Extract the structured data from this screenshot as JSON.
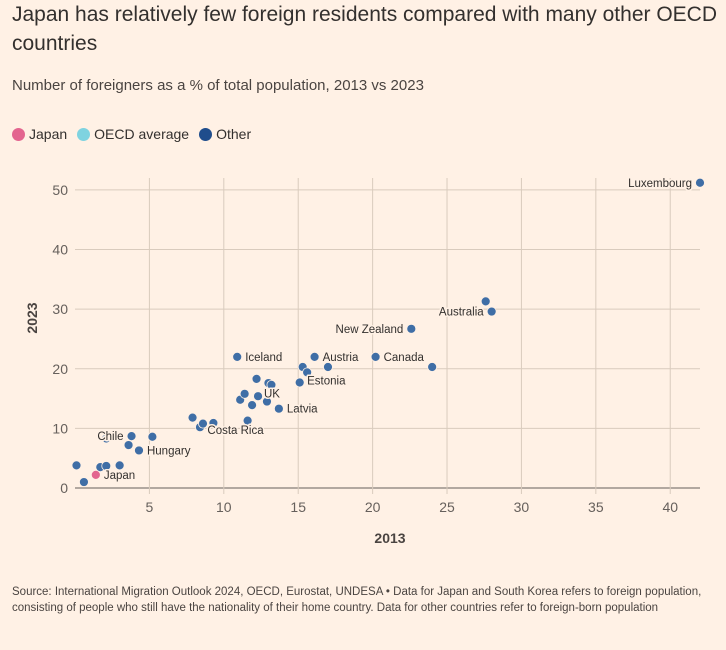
{
  "title": "Japan has relatively few foreign residents compared with many other OECD countries",
  "subtitle": "Number of foreigners as a % of total population, 2013 vs 2023",
  "source": "Source: International Migration Outlook 2024, OECD, Eurostat, UNDESA • Data for Japan and South Korea refers to foreign population, consisting of people who still have the nationality of their home country. Data for other countries refer to foreign-born population",
  "legend": [
    {
      "label": "Japan",
      "color": "#e3658f"
    },
    {
      "label": "OECD average",
      "color": "#7fd3e0"
    },
    {
      "label": "Other",
      "color": "#1f4d8c"
    }
  ],
  "chart_data": {
    "type": "scatter",
    "xlabel": "2013",
    "ylabel": "2023",
    "xlim": [
      0,
      42
    ],
    "ylim": [
      0,
      52
    ],
    "xticks": [
      5,
      10,
      15,
      20,
      25,
      30,
      35,
      40
    ],
    "yticks": [
      0,
      10,
      20,
      30,
      40,
      50
    ],
    "grid": true,
    "points": [
      {
        "x": 0.1,
        "y": 3.8,
        "group": "Other"
      },
      {
        "x": 0.6,
        "y": 1.0,
        "group": "Other"
      },
      {
        "x": 1.4,
        "y": 2.2,
        "group": "Japan",
        "label": "Japan",
        "labelSide": "right"
      },
      {
        "x": 1.7,
        "y": 3.5,
        "group": "Other"
      },
      {
        "x": 2.1,
        "y": 3.7,
        "group": "Other"
      },
      {
        "x": 2.1,
        "y": 8.3,
        "group": "Other"
      },
      {
        "x": 3.0,
        "y": 3.8,
        "group": "Other"
      },
      {
        "x": 3.6,
        "y": 7.2,
        "group": "Other"
      },
      {
        "x": 3.8,
        "y": 8.7,
        "group": "Other",
        "label": "Chile",
        "labelSide": "left"
      },
      {
        "x": 4.3,
        "y": 6.3,
        "group": "Other",
        "label": "Hungary",
        "labelSide": "right"
      },
      {
        "x": 5.2,
        "y": 8.6,
        "group": "Other"
      },
      {
        "x": 7.9,
        "y": 11.8,
        "group": "Other"
      },
      {
        "x": 8.4,
        "y": 10.2,
        "group": "Other"
      },
      {
        "x": 8.6,
        "y": 10.8,
        "group": "Other"
      },
      {
        "x": 9.3,
        "y": 10.9,
        "group": "Other",
        "label": "Costa Rica",
        "labelSide": "below"
      },
      {
        "x": 10.9,
        "y": 22.0,
        "group": "Other",
        "label": "Iceland",
        "labelSide": "right"
      },
      {
        "x": 11.1,
        "y": 14.8,
        "group": "Other"
      },
      {
        "x": 11.4,
        "y": 15.8,
        "group": "Other"
      },
      {
        "x": 11.6,
        "y": 11.3,
        "group": "Other"
      },
      {
        "x": 11.9,
        "y": 13.9,
        "group": "Other"
      },
      {
        "x": 12.2,
        "y": 18.3,
        "group": "Other"
      },
      {
        "x": 12.3,
        "y": 15.4,
        "group": "Other"
      },
      {
        "x": 12.9,
        "y": 14.5,
        "group": "Other",
        "label": "UK",
        "labelSide": "upright"
      },
      {
        "x": 13.0,
        "y": 17.6,
        "group": "Other"
      },
      {
        "x": 13.2,
        "y": 17.3,
        "group": "Other"
      },
      {
        "x": 13.7,
        "y": 13.3,
        "group": "Other",
        "label": "Latvia",
        "labelSide": "right"
      },
      {
        "x": 15.1,
        "y": 17.7,
        "group": "Other"
      },
      {
        "x": 15.3,
        "y": 20.3,
        "group": "Other"
      },
      {
        "x": 15.6,
        "y": 19.4,
        "group": "Other",
        "label": "Estonia",
        "labelSide": "belowright"
      },
      {
        "x": 16.1,
        "y": 22.0,
        "group": "Other",
        "label": "Austria",
        "labelSide": "right"
      },
      {
        "x": 17.0,
        "y": 20.3,
        "group": "Other"
      },
      {
        "x": 20.2,
        "y": 22.0,
        "group": "Other",
        "label": "Canada",
        "labelSide": "right"
      },
      {
        "x": 22.6,
        "y": 26.7,
        "group": "Other",
        "label": "New Zealand",
        "labelSide": "left"
      },
      {
        "x": 24.0,
        "y": 20.3,
        "group": "Other"
      },
      {
        "x": 27.6,
        "y": 31.3,
        "group": "Other"
      },
      {
        "x": 28.0,
        "y": 29.6,
        "group": "Other",
        "label": "Australia",
        "labelSide": "left"
      },
      {
        "x": 42.0,
        "y": 51.2,
        "group": "Other",
        "label": "Luxembourg",
        "labelSide": "left"
      }
    ]
  }
}
